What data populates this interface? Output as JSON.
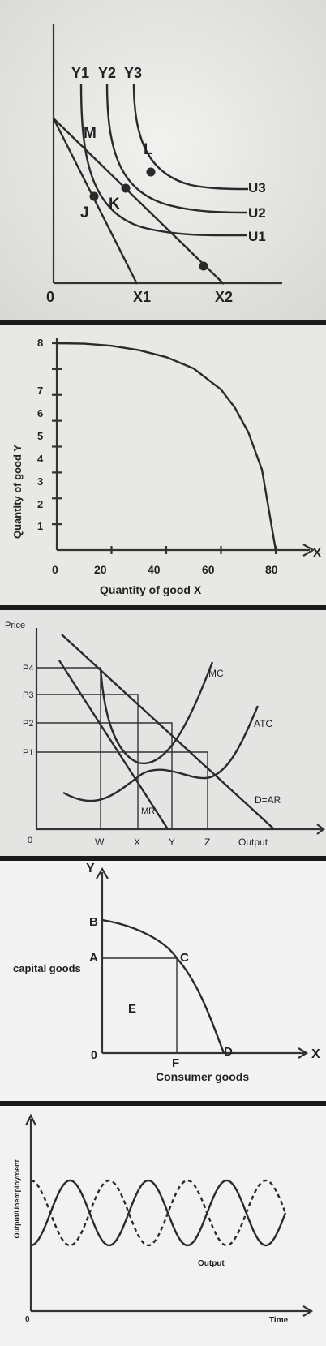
{
  "panels": [
    {
      "id": "indifference",
      "chart_data": {
        "type": "line",
        "title": "",
        "origin_label": "0",
        "y_intercepts": [
          "Y1",
          "Y2",
          "Y3"
        ],
        "x_intercepts": [
          "X1",
          "X2"
        ],
        "curves": [
          "U1",
          "U2",
          "U3"
        ],
        "points": [
          "M",
          "L",
          "K",
          "J"
        ]
      }
    },
    {
      "id": "ppf",
      "chart_data": {
        "type": "line",
        "xlabel": "Quantity of good X",
        "ylabel": "Quantity of good Y",
        "x_axis_end_label": "X",
        "x_ticks": [
          "0",
          "20",
          "40",
          "60",
          "80"
        ],
        "y_ticks": [
          "1",
          "2",
          "3",
          "4",
          "5",
          "6",
          "7",
          "8"
        ],
        "xlim": [
          0,
          80
        ],
        "ylim": [
          0,
          8
        ],
        "series": [
          {
            "values": [
              [
                0,
                8
              ],
              [
                10,
                7.98
              ],
              [
                20,
                7.9
              ],
              [
                30,
                7.73
              ],
              [
                40,
                7.46
              ],
              [
                50,
                7.02
              ],
              [
                60,
                6.21
              ],
              [
                65,
                5.52
              ],
              [
                70,
                4.55
              ],
              [
                75,
                3.1
              ],
              [
                80,
                0
              ]
            ]
          }
        ]
      }
    },
    {
      "id": "monopoly",
      "chart_data": {
        "type": "line",
        "ylabel": "Price",
        "xlabel": "Output",
        "origin_label": "0",
        "price_levels": [
          "P4",
          "P3",
          "P2",
          "P1"
        ],
        "quantity_levels": [
          "W",
          "X",
          "Y",
          "Z"
        ],
        "curve_labels": [
          "MC",
          "ATC",
          "D=AR",
          "MR"
        ]
      }
    },
    {
      "id": "ppc",
      "chart_data": {
        "type": "line",
        "y_axis_label": "Y",
        "x_axis_label": "X",
        "xlabel": "Consumer goods",
        "ylabel": "capital goods",
        "origin_label": "0",
        "points": [
          "B",
          "A",
          "C",
          "D",
          "F",
          "E"
        ]
      }
    },
    {
      "id": "cycle",
      "chart_data": {
        "type": "line",
        "ylabel": "Output/Unemployment",
        "xlabel": "Time",
        "origin_label": "0",
        "series": [
          {
            "name": "Output",
            "style": "solid"
          },
          {
            "style": "dashed"
          }
        ]
      }
    }
  ],
  "colors": {
    "ink": "#2a2a2a",
    "paper_top": "#e9e9e9",
    "paper_mid": "#f2f2f2",
    "divider": "#1a1a1a"
  }
}
